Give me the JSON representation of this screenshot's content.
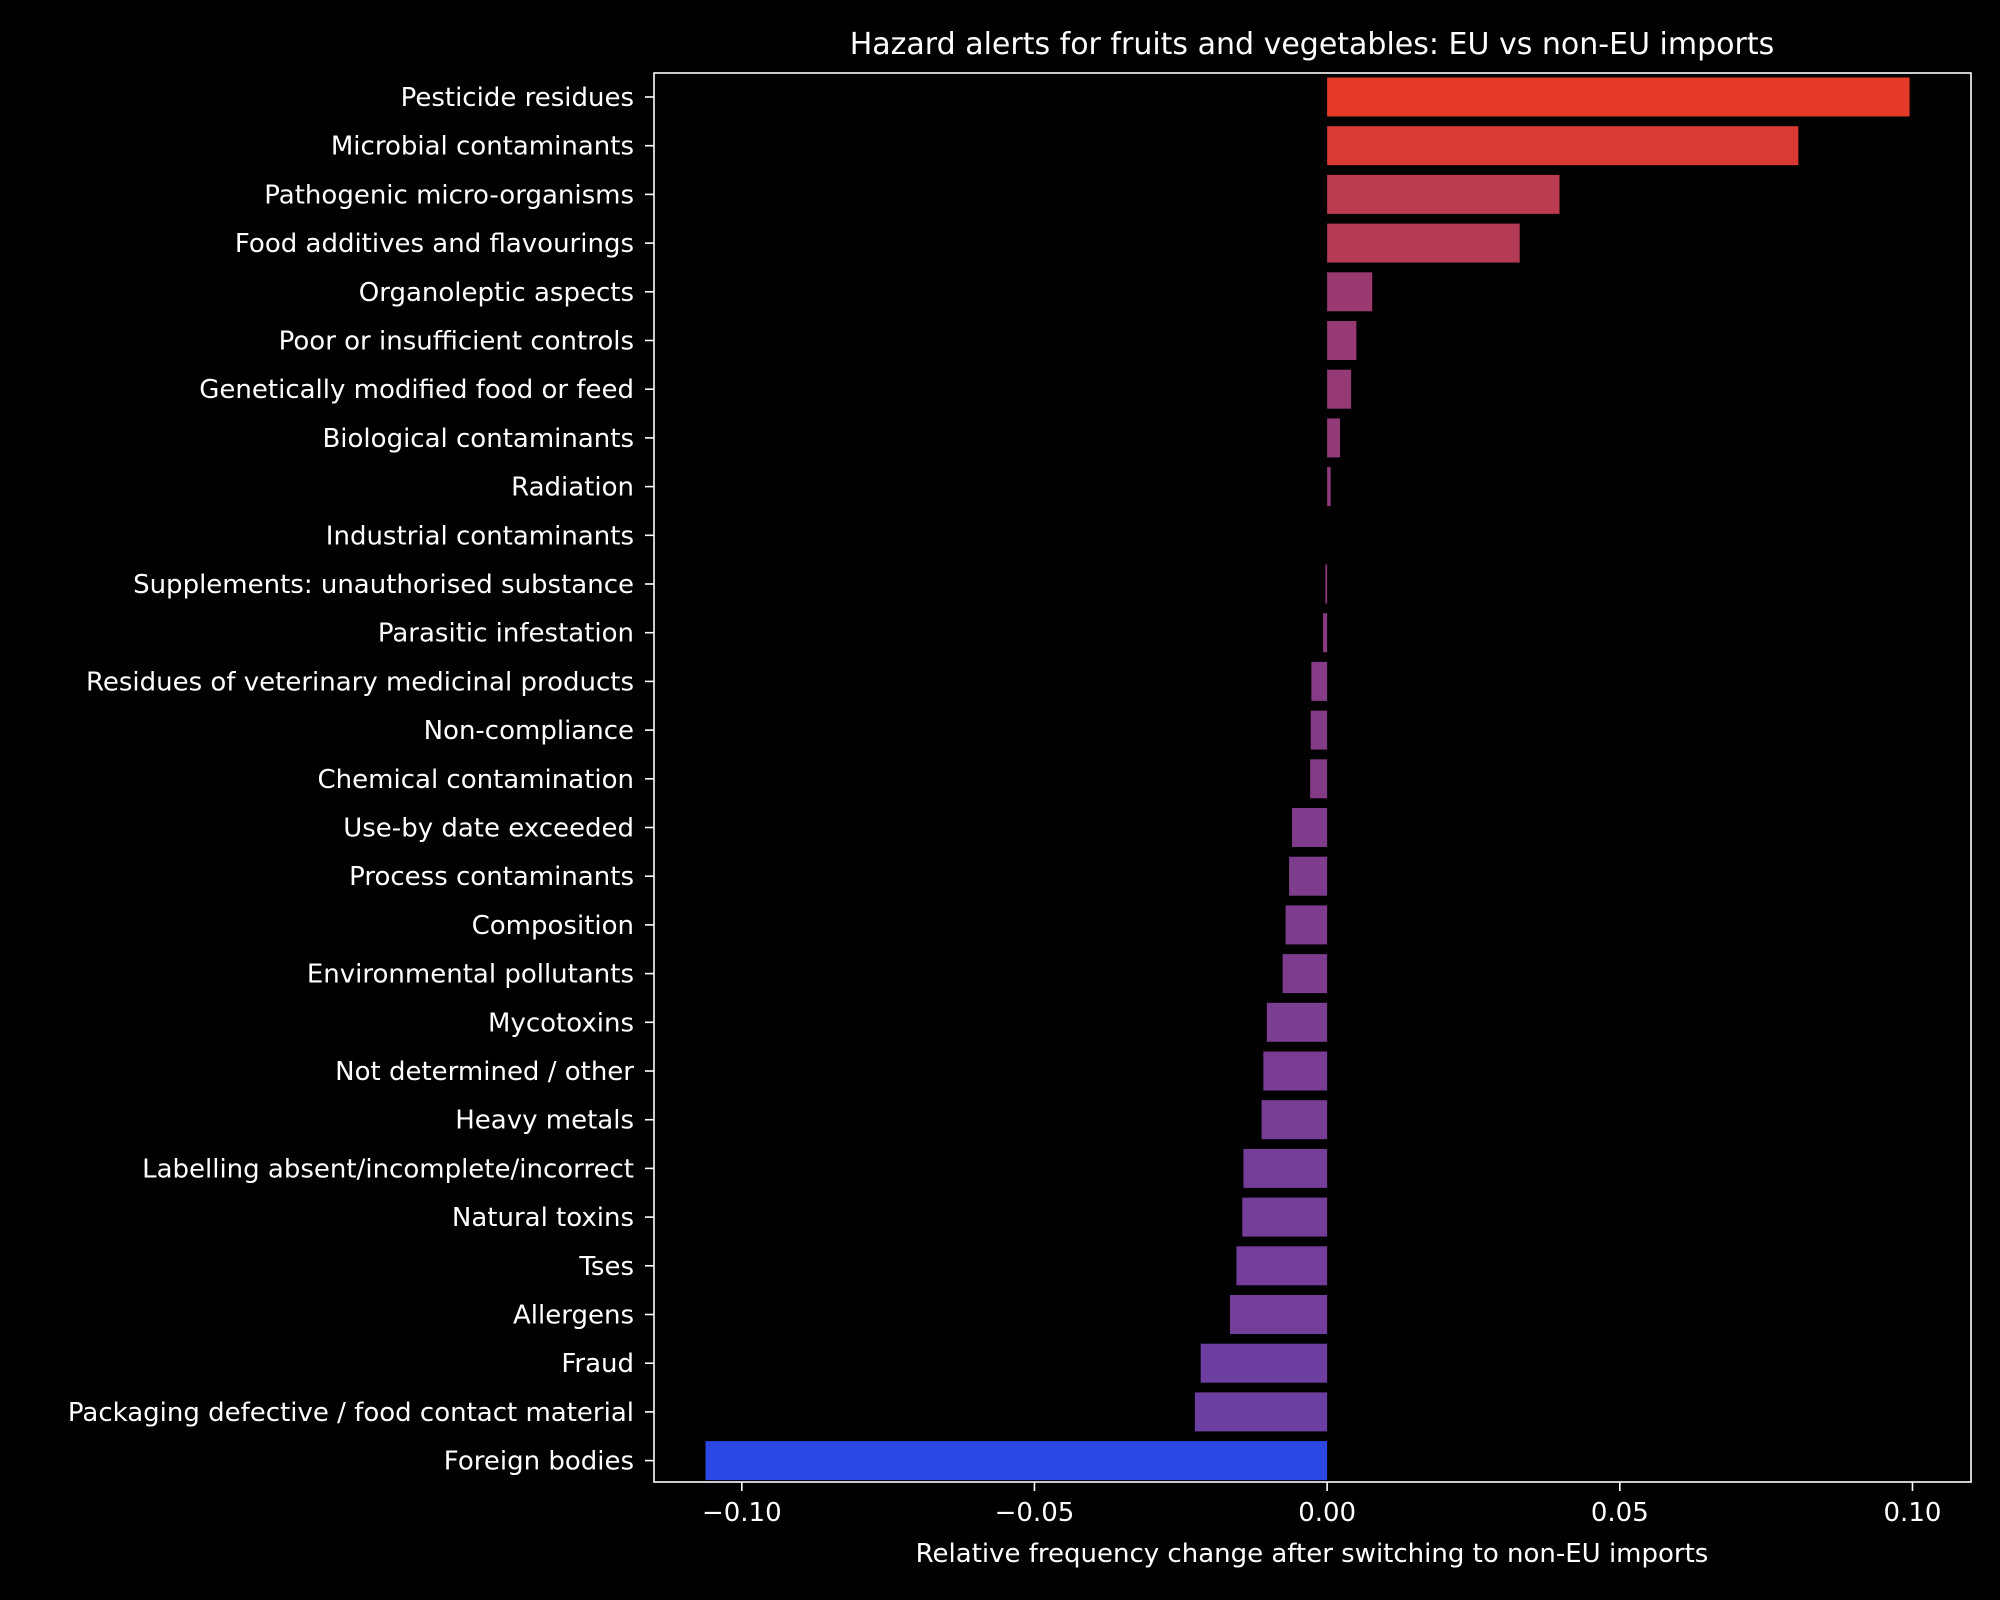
{
  "colors": {
    "background": "#000000",
    "axes": "#ffffff",
    "text": "#ffffff",
    "gradient_high": "#e53b28",
    "gradient_mid": "#8c3a7e",
    "gradient_low": "#2b47e6"
  },
  "chart_data": {
    "type": "bar",
    "orientation": "horizontal",
    "title": "Hazard alerts for fruits and vegetables: EU vs non-EU imports",
    "xlabel": "Relative frequency change after switching to non-EU imports",
    "ylabel": "",
    "xlim": [
      -0.115,
      0.11
    ],
    "xticks": [
      {
        "value": -0.1,
        "label": "−0.10"
      },
      {
        "value": -0.05,
        "label": "−0.05"
      },
      {
        "value": 0.0,
        "label": "0.00"
      },
      {
        "value": 0.05,
        "label": "0.05"
      },
      {
        "value": 0.1,
        "label": "0.10"
      }
    ],
    "grid": false,
    "legend": "none",
    "categories": [
      "Pesticide residues",
      "Microbial contaminants",
      "Pathogenic micro-organisms",
      "Food additives and flavourings",
      "Organoleptic aspects",
      "Poor or insufficient controls",
      "Genetically modified food or feed",
      "Biological contaminants",
      "Radiation",
      "Industrial contaminants",
      "Supplements: unauthorised substance",
      "Parasitic infestation",
      "Residues of veterinary medicinal products",
      "Non-compliance",
      "Chemical contamination",
      "Use-by date exceeded",
      "Process contaminants",
      "Composition",
      "Environmental pollutants",
      "Mycotoxins",
      "Not determined / other",
      "Heavy metals",
      "Labelling absent/incomplete/incorrect",
      "Natural toxins",
      "Tses",
      "Allergens",
      "Fraud",
      "Packaging defective / food contact material",
      "Foreign bodies"
    ],
    "values": [
      0.0995,
      0.0805,
      0.0397,
      0.0329,
      0.0077,
      0.005,
      0.0041,
      0.0022,
      0.0006,
      0.0,
      -0.0003,
      -0.0007,
      -0.0027,
      -0.0028,
      -0.0029,
      -0.006,
      -0.0065,
      -0.0071,
      -0.0076,
      -0.0103,
      -0.0109,
      -0.0112,
      -0.0143,
      -0.0145,
      -0.0155,
      -0.0166,
      -0.0216,
      -0.0226,
      -0.1062
    ]
  }
}
